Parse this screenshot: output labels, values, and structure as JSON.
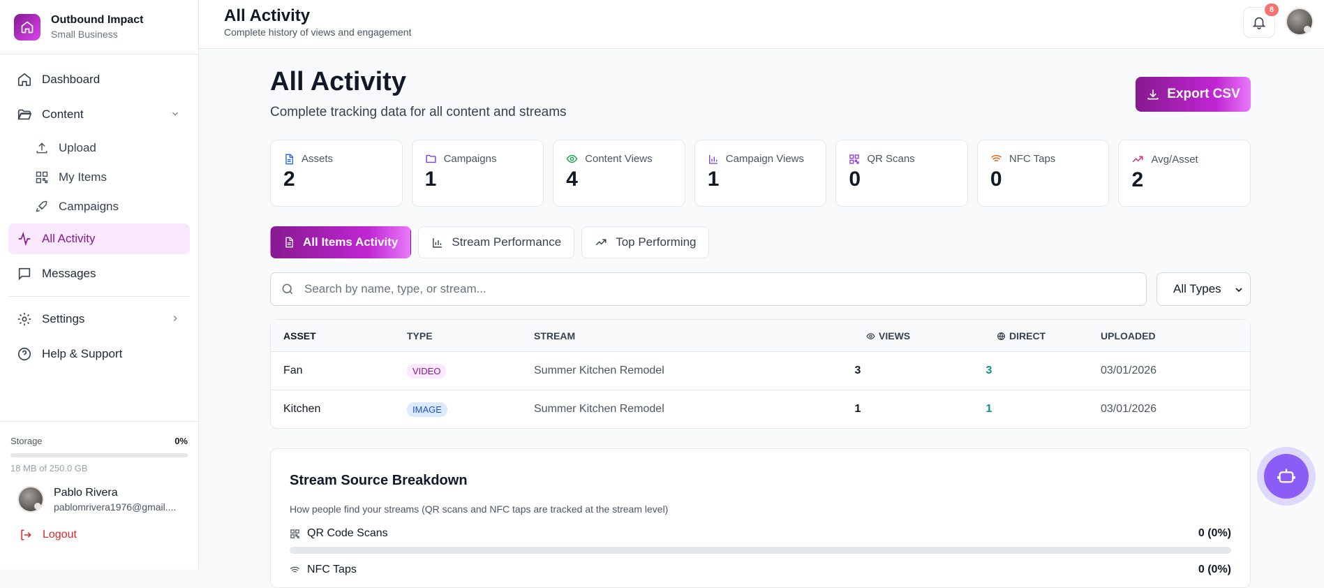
{
  "brand": {
    "name": "Outbound Impact",
    "subtitle": "Small Business"
  },
  "sidebar": {
    "items": [
      {
        "label": "Dashboard"
      },
      {
        "label": "Content"
      },
      {
        "label": "Upload"
      },
      {
        "label": "My Items"
      },
      {
        "label": "Campaigns"
      },
      {
        "label": "All Activity"
      },
      {
        "label": "Messages"
      },
      {
        "label": "Settings"
      },
      {
        "label": "Help & Support"
      }
    ],
    "storage": {
      "label": "Storage",
      "percent": "0%",
      "used_fraction": 0,
      "detail": "18 MB of 250.0 GB"
    },
    "user": {
      "name": "Pablo Rivera",
      "email": "pablomrivera1976@gmail...."
    },
    "logout_label": "Logout"
  },
  "header": {
    "title": "All Activity",
    "subtitle": "Complete history of views and engagement",
    "notification_count": "8"
  },
  "main": {
    "title": "All Activity",
    "subtitle": "Complete tracking data for all content and streams",
    "export_label": "Export CSV",
    "stats": [
      {
        "label": "Assets",
        "value": "2",
        "icon": "document-icon",
        "color": "#2563eb"
      },
      {
        "label": "Campaigns",
        "value": "1",
        "icon": "folder-icon",
        "color": "#7c3aed"
      },
      {
        "label": "Content Views",
        "value": "4",
        "icon": "eye-icon",
        "color": "#16a34a"
      },
      {
        "label": "Campaign Views",
        "value": "1",
        "icon": "bar-chart-icon",
        "color": "#7c3aed"
      },
      {
        "label": "QR Scans",
        "value": "0",
        "icon": "qr-code-icon",
        "color": "#9333ea"
      },
      {
        "label": "NFC Taps",
        "value": "0",
        "icon": "wifi-icon",
        "color": "#ea580c"
      },
      {
        "label": "Avg/Asset",
        "value": "2",
        "icon": "trending-up-icon",
        "color": "#db2777"
      }
    ],
    "tabs": [
      {
        "label": "All Items Activity"
      },
      {
        "label": "Stream Performance"
      },
      {
        "label": "Top Performing"
      }
    ],
    "search_placeholder": "Search by name, type, or stream...",
    "type_filter": "All Types",
    "table": {
      "headers": {
        "asset": "ASSET",
        "type": "TYPE",
        "stream": "STREAM",
        "views": "VIEWS",
        "direct": "DIRECT",
        "uploaded": "UPLOADED"
      },
      "rows": [
        {
          "asset": "Fan",
          "type": "VIDEO",
          "stream": "Summer Kitchen Remodel",
          "views": "3",
          "direct": "3",
          "uploaded": "03/01/2026"
        },
        {
          "asset": "Kitchen",
          "type": "IMAGE",
          "stream": "Summer Kitchen Remodel",
          "views": "1",
          "direct": "1",
          "uploaded": "03/01/2026"
        }
      ]
    },
    "breakdown": {
      "title": "Stream Source Breakdown",
      "subtitle": "How people find your streams (QR scans and NFC taps are tracked at the stream level)",
      "rows": [
        {
          "label": "QR Code Scans",
          "value": "0 (0%)",
          "fraction": 0
        },
        {
          "label": "NFC Taps",
          "value": "0 (0%)",
          "fraction": 0
        }
      ]
    }
  },
  "colors": {
    "accent": "#86198f",
    "accent_light": "#e879f9",
    "direct": "#0d9488",
    "logout": "#dc2626",
    "assistant": "#8b5cf6"
  }
}
